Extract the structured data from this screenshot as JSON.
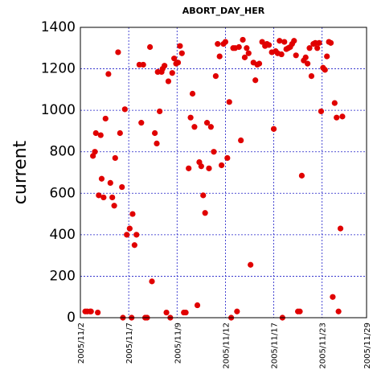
{
  "chart_data": {
    "type": "scatter",
    "title": "ABORT_DAY_HER",
    "ylabel": "current",
    "xlabel": "",
    "ylim": [
      0,
      1400
    ],
    "xlim": [
      0,
      29.6
    ],
    "yticks": [
      0,
      200,
      400,
      600,
      800,
      1000,
      1200,
      1400
    ],
    "xticks": [
      {
        "label": "2005/11/2",
        "x": 0
      },
      {
        "label": "2005/11/7",
        "x": 5
      },
      {
        "label": "2005/11/9",
        "x": 10
      },
      {
        "label": "2005/11/12",
        "x": 15
      },
      {
        "label": "2005/11/17",
        "x": 20
      },
      {
        "label": "2005/11/23",
        "x": 25
      },
      {
        "label": "2005/11/29",
        "x": 30
      }
    ],
    "grid": true,
    "point_color": "#e00000",
    "grid_color": "#1c1cc8",
    "points": [
      [
        0.5,
        30
      ],
      [
        0.7,
        30
      ],
      [
        1.0,
        30
      ],
      [
        1.1,
        30
      ],
      [
        1.3,
        780
      ],
      [
        1.5,
        800
      ],
      [
        1.6,
        890
      ],
      [
        1.8,
        25
      ],
      [
        1.9,
        590
      ],
      [
        2.1,
        880
      ],
      [
        2.2,
        670
      ],
      [
        2.4,
        580
      ],
      [
        2.6,
        960
      ],
      [
        2.9,
        1175
      ],
      [
        3.1,
        650
      ],
      [
        3.3,
        580
      ],
      [
        3.5,
        540
      ],
      [
        3.6,
        770
      ],
      [
        3.9,
        1280
      ],
      [
        4.1,
        890
      ],
      [
        4.3,
        630
      ],
      [
        4.4,
        0
      ],
      [
        4.6,
        1005
      ],
      [
        4.8,
        400
      ],
      [
        5.1,
        430
      ],
      [
        5.3,
        0
      ],
      [
        5.4,
        500
      ],
      [
        5.6,
        350
      ],
      [
        5.8,
        400
      ],
      [
        6.1,
        1220
      ],
      [
        6.3,
        940
      ],
      [
        6.5,
        1220
      ],
      [
        6.7,
        0
      ],
      [
        6.9,
        0
      ],
      [
        7.2,
        1305
      ],
      [
        7.4,
        175
      ],
      [
        7.7,
        890
      ],
      [
        7.9,
        840
      ],
      [
        8.0,
        1185
      ],
      [
        8.2,
        995
      ],
      [
        8.4,
        1185
      ],
      [
        8.5,
        1200
      ],
      [
        8.7,
        1215
      ],
      [
        8.9,
        25
      ],
      [
        9.1,
        1140
      ],
      [
        9.3,
        0
      ],
      [
        9.5,
        1180
      ],
      [
        9.7,
        1250
      ],
      [
        9.9,
        1225
      ],
      [
        10.1,
        1230
      ],
      [
        10.3,
        1310
      ],
      [
        10.5,
        1275
      ],
      [
        10.7,
        25
      ],
      [
        10.9,
        25
      ],
      [
        11.2,
        720
      ],
      [
        11.4,
        965
      ],
      [
        11.6,
        1080
      ],
      [
        11.8,
        920
      ],
      [
        12.1,
        60
      ],
      [
        12.3,
        750
      ],
      [
        12.5,
        730
      ],
      [
        12.7,
        590
      ],
      [
        12.9,
        505
      ],
      [
        13.1,
        940
      ],
      [
        13.3,
        720
      ],
      [
        13.5,
        920
      ],
      [
        13.8,
        800
      ],
      [
        14.0,
        1165
      ],
      [
        14.2,
        1320
      ],
      [
        14.4,
        1260
      ],
      [
        14.6,
        735
      ],
      [
        14.8,
        1320
      ],
      [
        15.0,
        1330
      ],
      [
        15.2,
        770
      ],
      [
        15.4,
        1040
      ],
      [
        15.6,
        0
      ],
      [
        15.8,
        1300
      ],
      [
        16.0,
        1300
      ],
      [
        16.2,
        30
      ],
      [
        16.4,
        1305
      ],
      [
        16.6,
        855
      ],
      [
        16.8,
        1340
      ],
      [
        17.0,
        1255
      ],
      [
        17.2,
        1300
      ],
      [
        17.4,
        1275
      ],
      [
        17.6,
        255
      ],
      [
        17.9,
        1230
      ],
      [
        18.1,
        1145
      ],
      [
        18.3,
        1220
      ],
      [
        18.5,
        1225
      ],
      [
        18.8,
        1330
      ],
      [
        19.1,
        1310
      ],
      [
        19.3,
        1320
      ],
      [
        19.5,
        1315
      ],
      [
        19.8,
        1280
      ],
      [
        20.0,
        910
      ],
      [
        20.2,
        1285
      ],
      [
        20.4,
        1275
      ],
      [
        20.6,
        1335
      ],
      [
        20.8,
        1270
      ],
      [
        20.9,
        0
      ],
      [
        21.1,
        1330
      ],
      [
        21.3,
        1295
      ],
      [
        21.5,
        1300
      ],
      [
        21.7,
        1305
      ],
      [
        21.9,
        1320
      ],
      [
        22.1,
        1335
      ],
      [
        22.3,
        1265
      ],
      [
        22.5,
        30
      ],
      [
        22.7,
        30
      ],
      [
        22.9,
        685
      ],
      [
        23.1,
        1240
      ],
      [
        23.3,
        1255
      ],
      [
        23.5,
        1225
      ],
      [
        23.7,
        1300
      ],
      [
        23.9,
        1165
      ],
      [
        24.1,
        1320
      ],
      [
        24.3,
        1325
      ],
      [
        24.5,
        1300
      ],
      [
        24.7,
        1325
      ],
      [
        24.9,
        995
      ],
      [
        25.1,
        1205
      ],
      [
        25.3,
        1195
      ],
      [
        25.5,
        1260
      ],
      [
        25.7,
        1330
      ],
      [
        25.9,
        1325
      ],
      [
        26.1,
        100
      ],
      [
        26.3,
        1035
      ],
      [
        26.5,
        965
      ],
      [
        26.7,
        30
      ],
      [
        26.9,
        430
      ],
      [
        27.1,
        970
      ]
    ]
  }
}
